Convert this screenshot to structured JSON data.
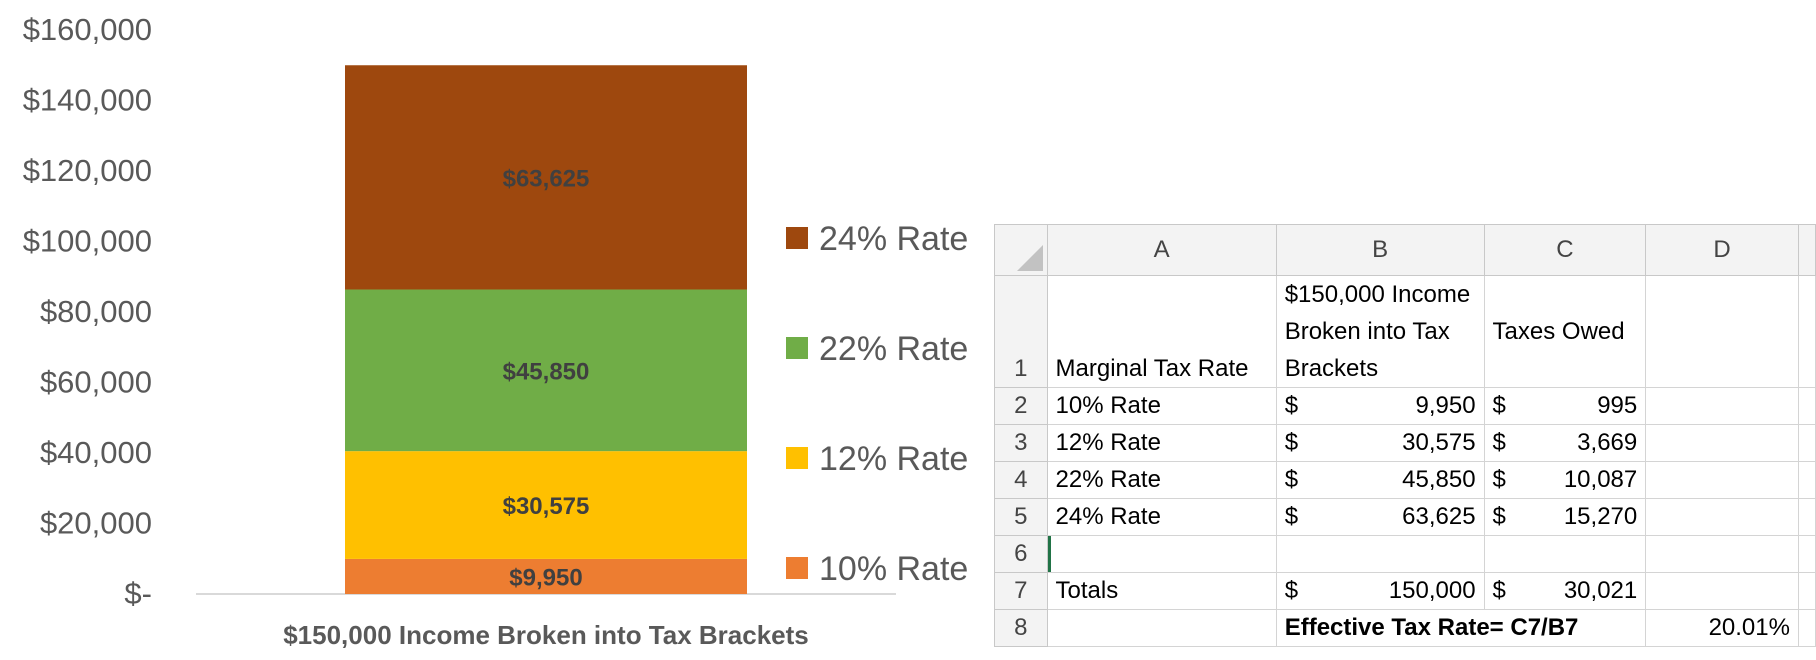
{
  "chart_data": {
    "type": "stacked-bar",
    "categories": [
      "$150,000 Income Broken into Tax Brackets"
    ],
    "xlabel": "$150,000 Income Broken into Tax Brackets",
    "ylim": [
      0,
      160000
    ],
    "yticks": [
      0,
      20000,
      40000,
      60000,
      80000,
      100000,
      120000,
      140000,
      160000
    ],
    "ytick_labels": [
      "$-",
      "$20,000",
      "$40,000",
      "$60,000",
      "$80,000",
      "$100,000",
      "$120,000",
      "$140,000",
      "$160,000"
    ],
    "legend_position": "right",
    "series": [
      {
        "name": "10% Rate",
        "values": [
          9950
        ],
        "label": "$9,950",
        "color": "#ed7d31"
      },
      {
        "name": "12% Rate",
        "values": [
          30575
        ],
        "label": "$30,575",
        "color": "#ffc000"
      },
      {
        "name": "22% Rate",
        "values": [
          45850
        ],
        "label": "$45,850",
        "color": "#70ad47"
      },
      {
        "name": "24% Rate",
        "values": [
          63625
        ],
        "label": "$63,625",
        "color": "#9e480e"
      }
    ]
  },
  "sheet": {
    "columns": [
      "A",
      "B",
      "C",
      "D"
    ],
    "rows": [
      {
        "num": "1",
        "a": "Marginal Tax Rate",
        "b": "$150,000 Income Broken into Tax Brackets",
        "c": "Taxes Owed",
        "d": ""
      },
      {
        "num": "2",
        "a": "10% Rate",
        "b_sym": "$",
        "b_val": "9,950",
        "c_sym": "$",
        "c_val": "995",
        "d": ""
      },
      {
        "num": "3",
        "a": "12% Rate",
        "b_sym": "$",
        "b_val": "30,575",
        "c_sym": "$",
        "c_val": "3,669",
        "d": ""
      },
      {
        "num": "4",
        "a": "22% Rate",
        "b_sym": "$",
        "b_val": "45,850",
        "c_sym": "$",
        "c_val": "10,087",
        "d": ""
      },
      {
        "num": "5",
        "a": "24% Rate",
        "b_sym": "$",
        "b_val": "63,625",
        "c_sym": "$",
        "c_val": "15,270",
        "d": ""
      },
      {
        "num": "6"
      },
      {
        "num": "7",
        "a": "Totals",
        "b_sym": "$",
        "b_val": "150,000",
        "c_sym": "$",
        "c_val": "30,021",
        "d": ""
      },
      {
        "num": "8",
        "a": "",
        "bc": "Effective Tax Rate= C7/B7",
        "d": "20.01%"
      }
    ]
  }
}
